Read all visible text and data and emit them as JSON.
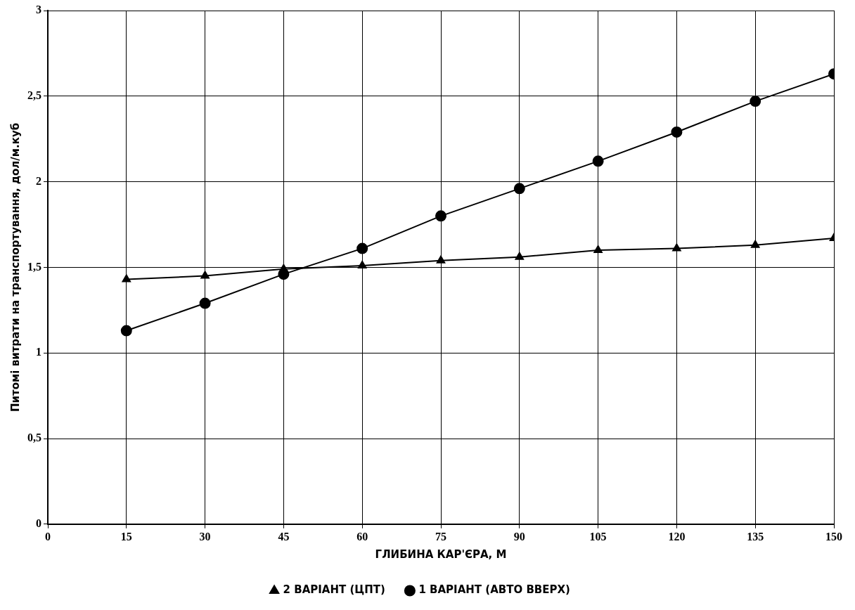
{
  "chart_data": {
    "type": "line",
    "xlabel": "ГЛИБИНА КАР'ЄРА, М",
    "ylabel": "Питомі витрати на транспортування, дол/м.куб",
    "x": [
      15,
      30,
      45,
      60,
      75,
      90,
      105,
      120,
      135,
      150
    ],
    "series": [
      {
        "name": "2 ВАРІАНТ (ЦПТ)",
        "color": "#000000",
        "marker": "triangle",
        "values": [
          1.43,
          1.45,
          1.49,
          1.51,
          1.54,
          1.56,
          1.6,
          1.61,
          1.63,
          1.67
        ]
      },
      {
        "name": "1 ВАРІАНТ (АВТО ВВЕРХ)",
        "color": "#000000",
        "marker": "circle",
        "values": [
          1.13,
          1.29,
          1.46,
          1.61,
          1.8,
          1.96,
          2.12,
          2.29,
          2.47,
          2.63
        ]
      }
    ],
    "xlim": [
      0,
      150
    ],
    "xticks": [
      0,
      15,
      30,
      45,
      60,
      75,
      90,
      105,
      120,
      135,
      150
    ],
    "ylim": [
      0,
      3
    ],
    "yticks": [
      0,
      {
        "value": 0.5,
        "label": "0,5"
      },
      1,
      {
        "value": 1.5,
        "label": "1,5"
      },
      2,
      {
        "value": 2.5,
        "label": "2,5"
      },
      3
    ],
    "grid": true,
    "legend": "bottom",
    "line_style": "solid"
  }
}
